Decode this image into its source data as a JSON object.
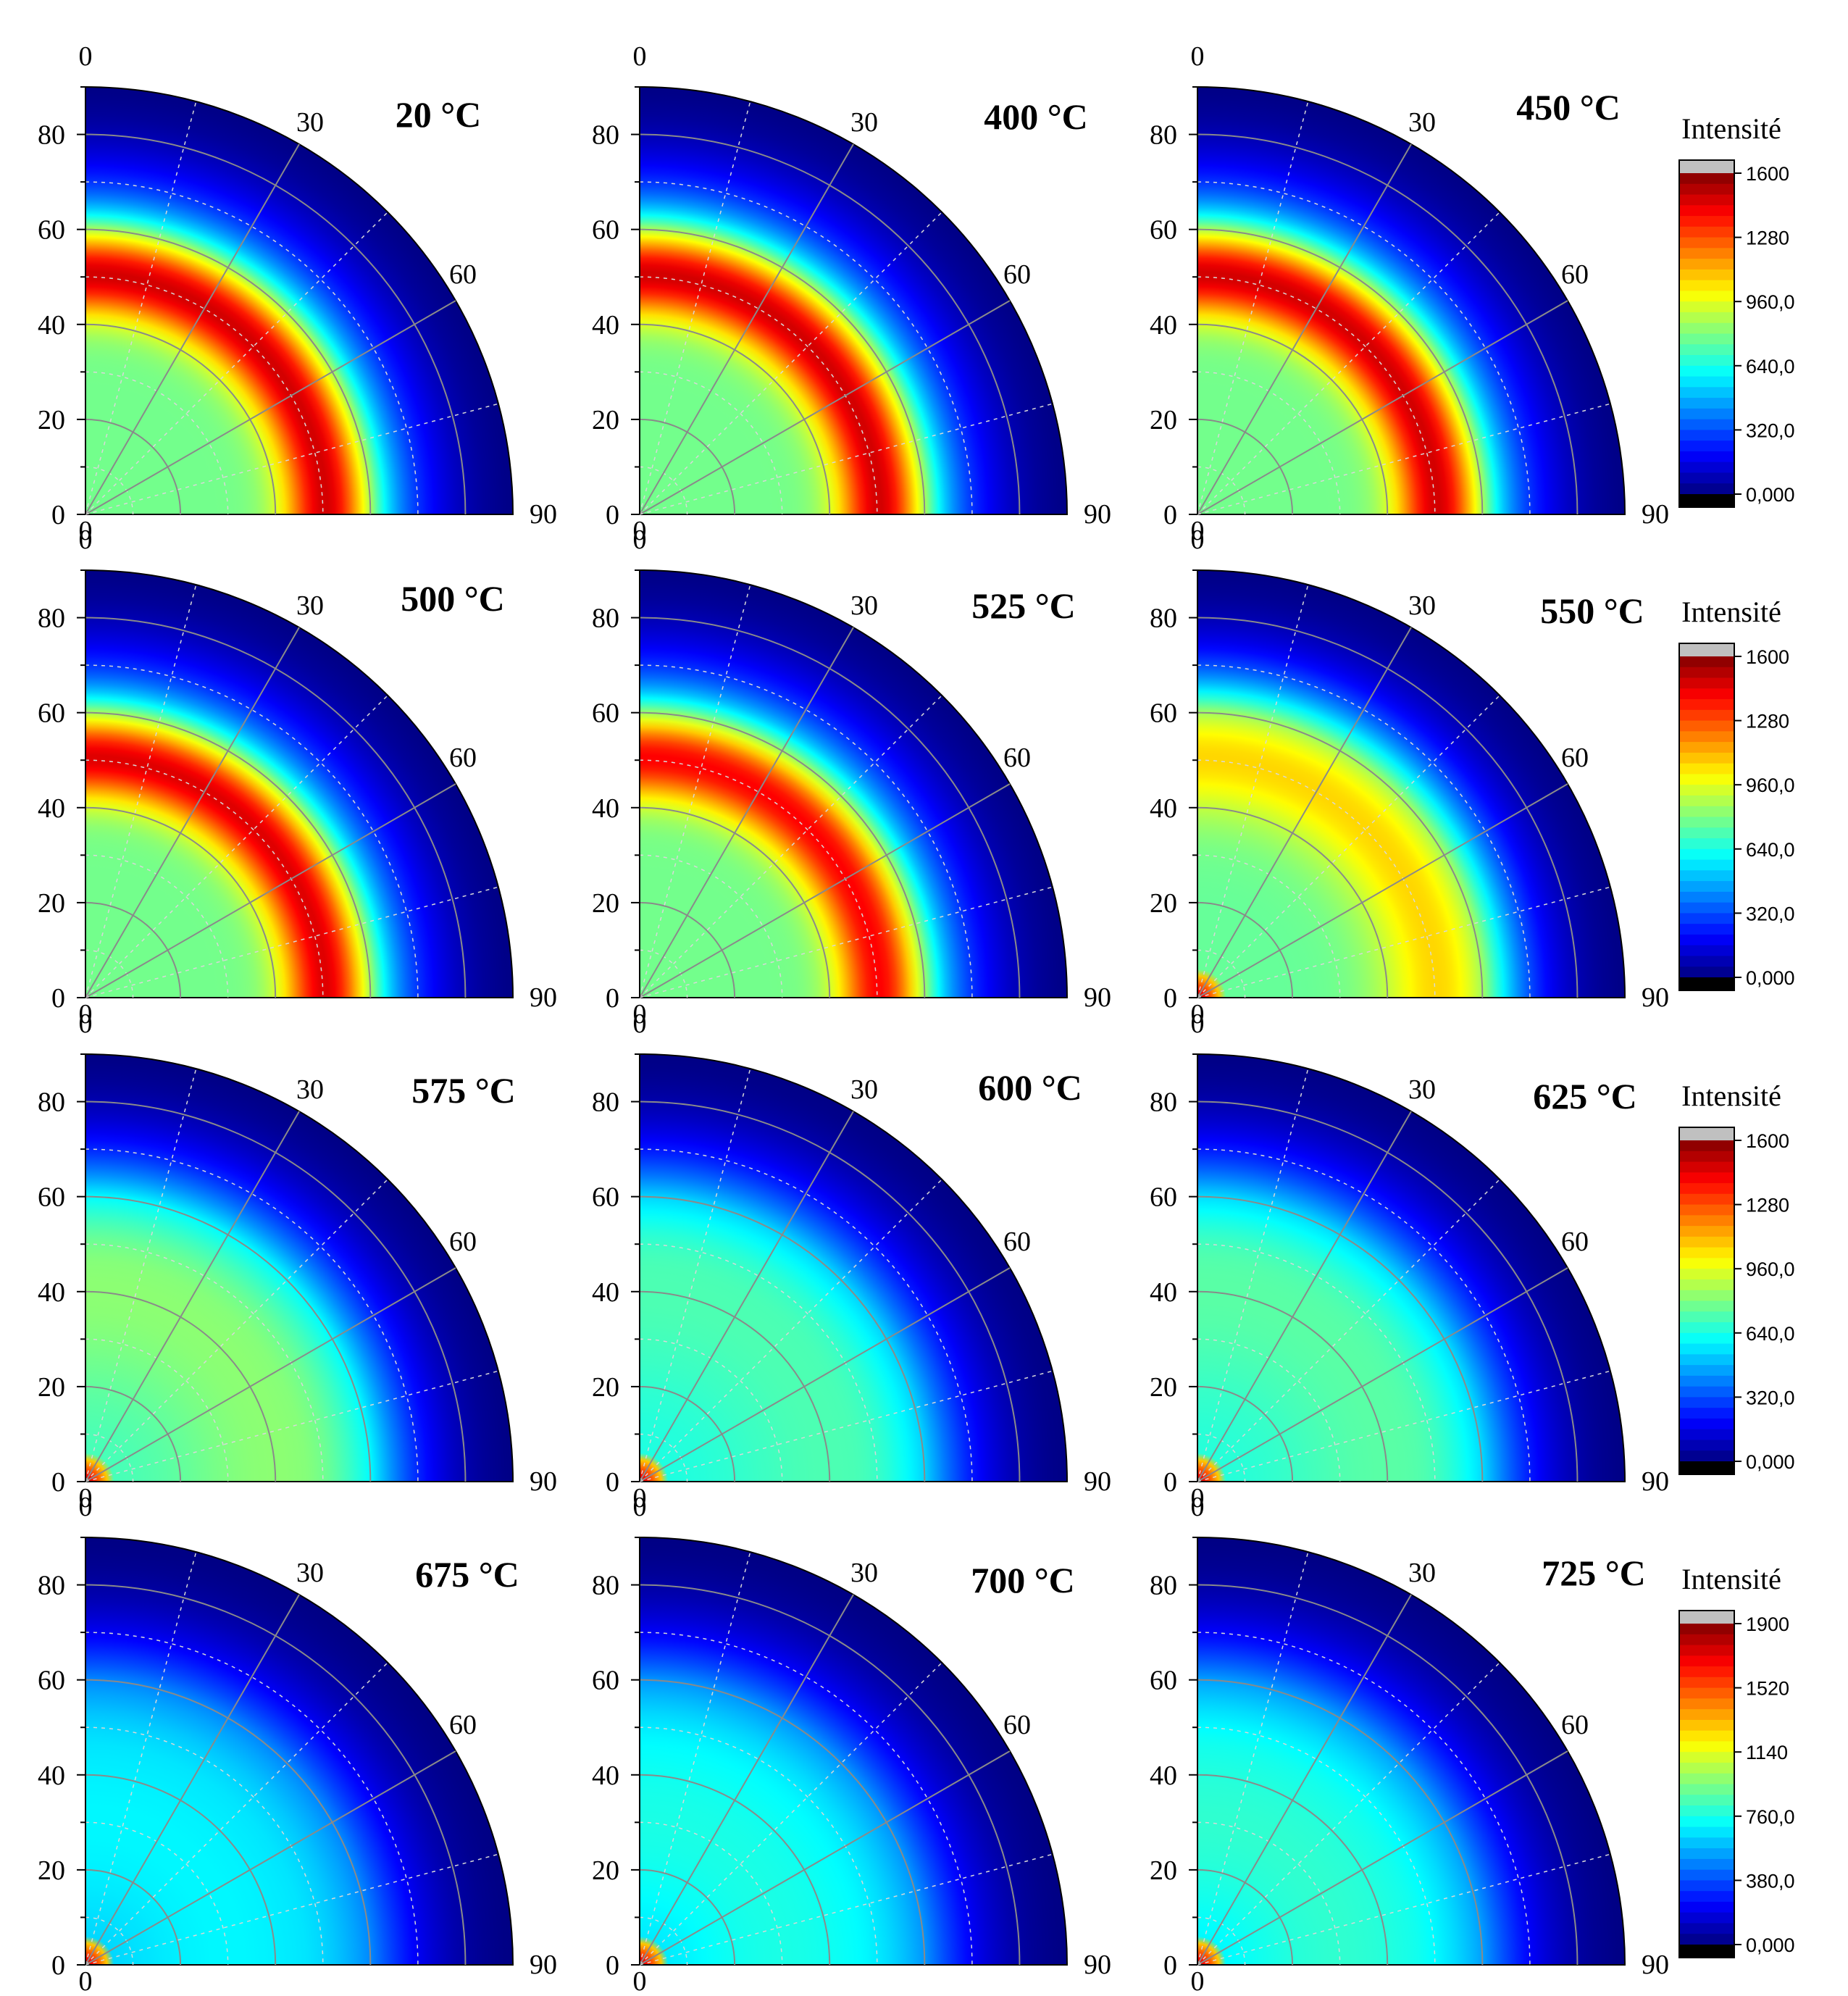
{
  "chart_data": {
    "type": "heatmap",
    "layout": "4 rows x 3 columns of quarter polar plots",
    "radial_axis": {
      "range": [
        0,
        90
      ],
      "ticks": [
        "0",
        "20",
        "40",
        "60",
        "80"
      ]
    },
    "angular_axis": {
      "range": [
        0,
        90
      ],
      "ticks": [
        "0",
        "30",
        "60",
        "90"
      ]
    },
    "grid": true,
    "colormap": "jet",
    "panels": [
      {
        "label": "20 °C",
        "peak_radius": 51,
        "peak_width": 9,
        "peak_intensity": 1500,
        "base_intensity": 780,
        "center_hotspot": false
      },
      {
        "label": "400 °C",
        "peak_radius": 51,
        "peak_width": 9,
        "peak_intensity": 1500,
        "base_intensity": 780,
        "center_hotspot": false
      },
      {
        "label": "450 °C",
        "peak_radius": 51,
        "peak_width": 9,
        "peak_intensity": 1500,
        "base_intensity": 780,
        "center_hotspot": false
      },
      {
        "label": "500 °C",
        "peak_radius": 51,
        "peak_width": 9,
        "peak_intensity": 1480,
        "base_intensity": 780,
        "center_hotspot": false
      },
      {
        "label": "525 °C",
        "peak_radius": 51,
        "peak_width": 9,
        "peak_intensity": 1430,
        "base_intensity": 780,
        "center_hotspot": false
      },
      {
        "label": "550 °C",
        "peak_radius": 53,
        "peak_width": 14,
        "peak_intensity": 1100,
        "base_intensity": 760,
        "center_hotspot": true
      },
      {
        "label": "575 °C",
        "peak_radius": 40,
        "peak_width": 22,
        "peak_intensity": 820,
        "base_intensity": 700,
        "center_hotspot": true
      },
      {
        "label": "600 °C",
        "peak_radius": 40,
        "peak_width": 22,
        "peak_intensity": 720,
        "base_intensity": 640,
        "center_hotspot": true
      },
      {
        "label": "625 °C",
        "peak_radius": 40,
        "peak_width": 22,
        "peak_intensity": 740,
        "base_intensity": 650,
        "center_hotspot": true
      },
      {
        "label": "675 °C",
        "peak_radius": 30,
        "peak_width": 25,
        "peak_intensity": 700,
        "base_intensity": 600,
        "center_hotspot": true
      },
      {
        "label": "700 °C",
        "peak_radius": 30,
        "peak_width": 25,
        "peak_intensity": 760,
        "base_intensity": 620,
        "center_hotspot": true
      },
      {
        "label": "725 °C",
        "peak_radius": 30,
        "peak_width": 25,
        "peak_intensity": 800,
        "base_intensity": 640,
        "center_hotspot": true
      }
    ],
    "colorbars": [
      {
        "title": "Intensité",
        "ticks": [
          "1600",
          "1280",
          "960,0",
          "640,0",
          "320,0",
          "0,000"
        ],
        "max": 1600
      },
      {
        "title": "Intensité",
        "ticks": [
          "1600",
          "1280",
          "960,0",
          "640,0",
          "320,0",
          "0,000"
        ],
        "max": 1600
      },
      {
        "title": "Intensité",
        "ticks": [
          "1600",
          "1280",
          "960,0",
          "640,0",
          "320,0",
          "0,000"
        ],
        "max": 1600
      },
      {
        "title": "Intensité",
        "ticks": [
          "1900",
          "1520",
          "1140",
          "760,0",
          "380,0",
          "0,000"
        ],
        "max": 1900
      }
    ]
  }
}
